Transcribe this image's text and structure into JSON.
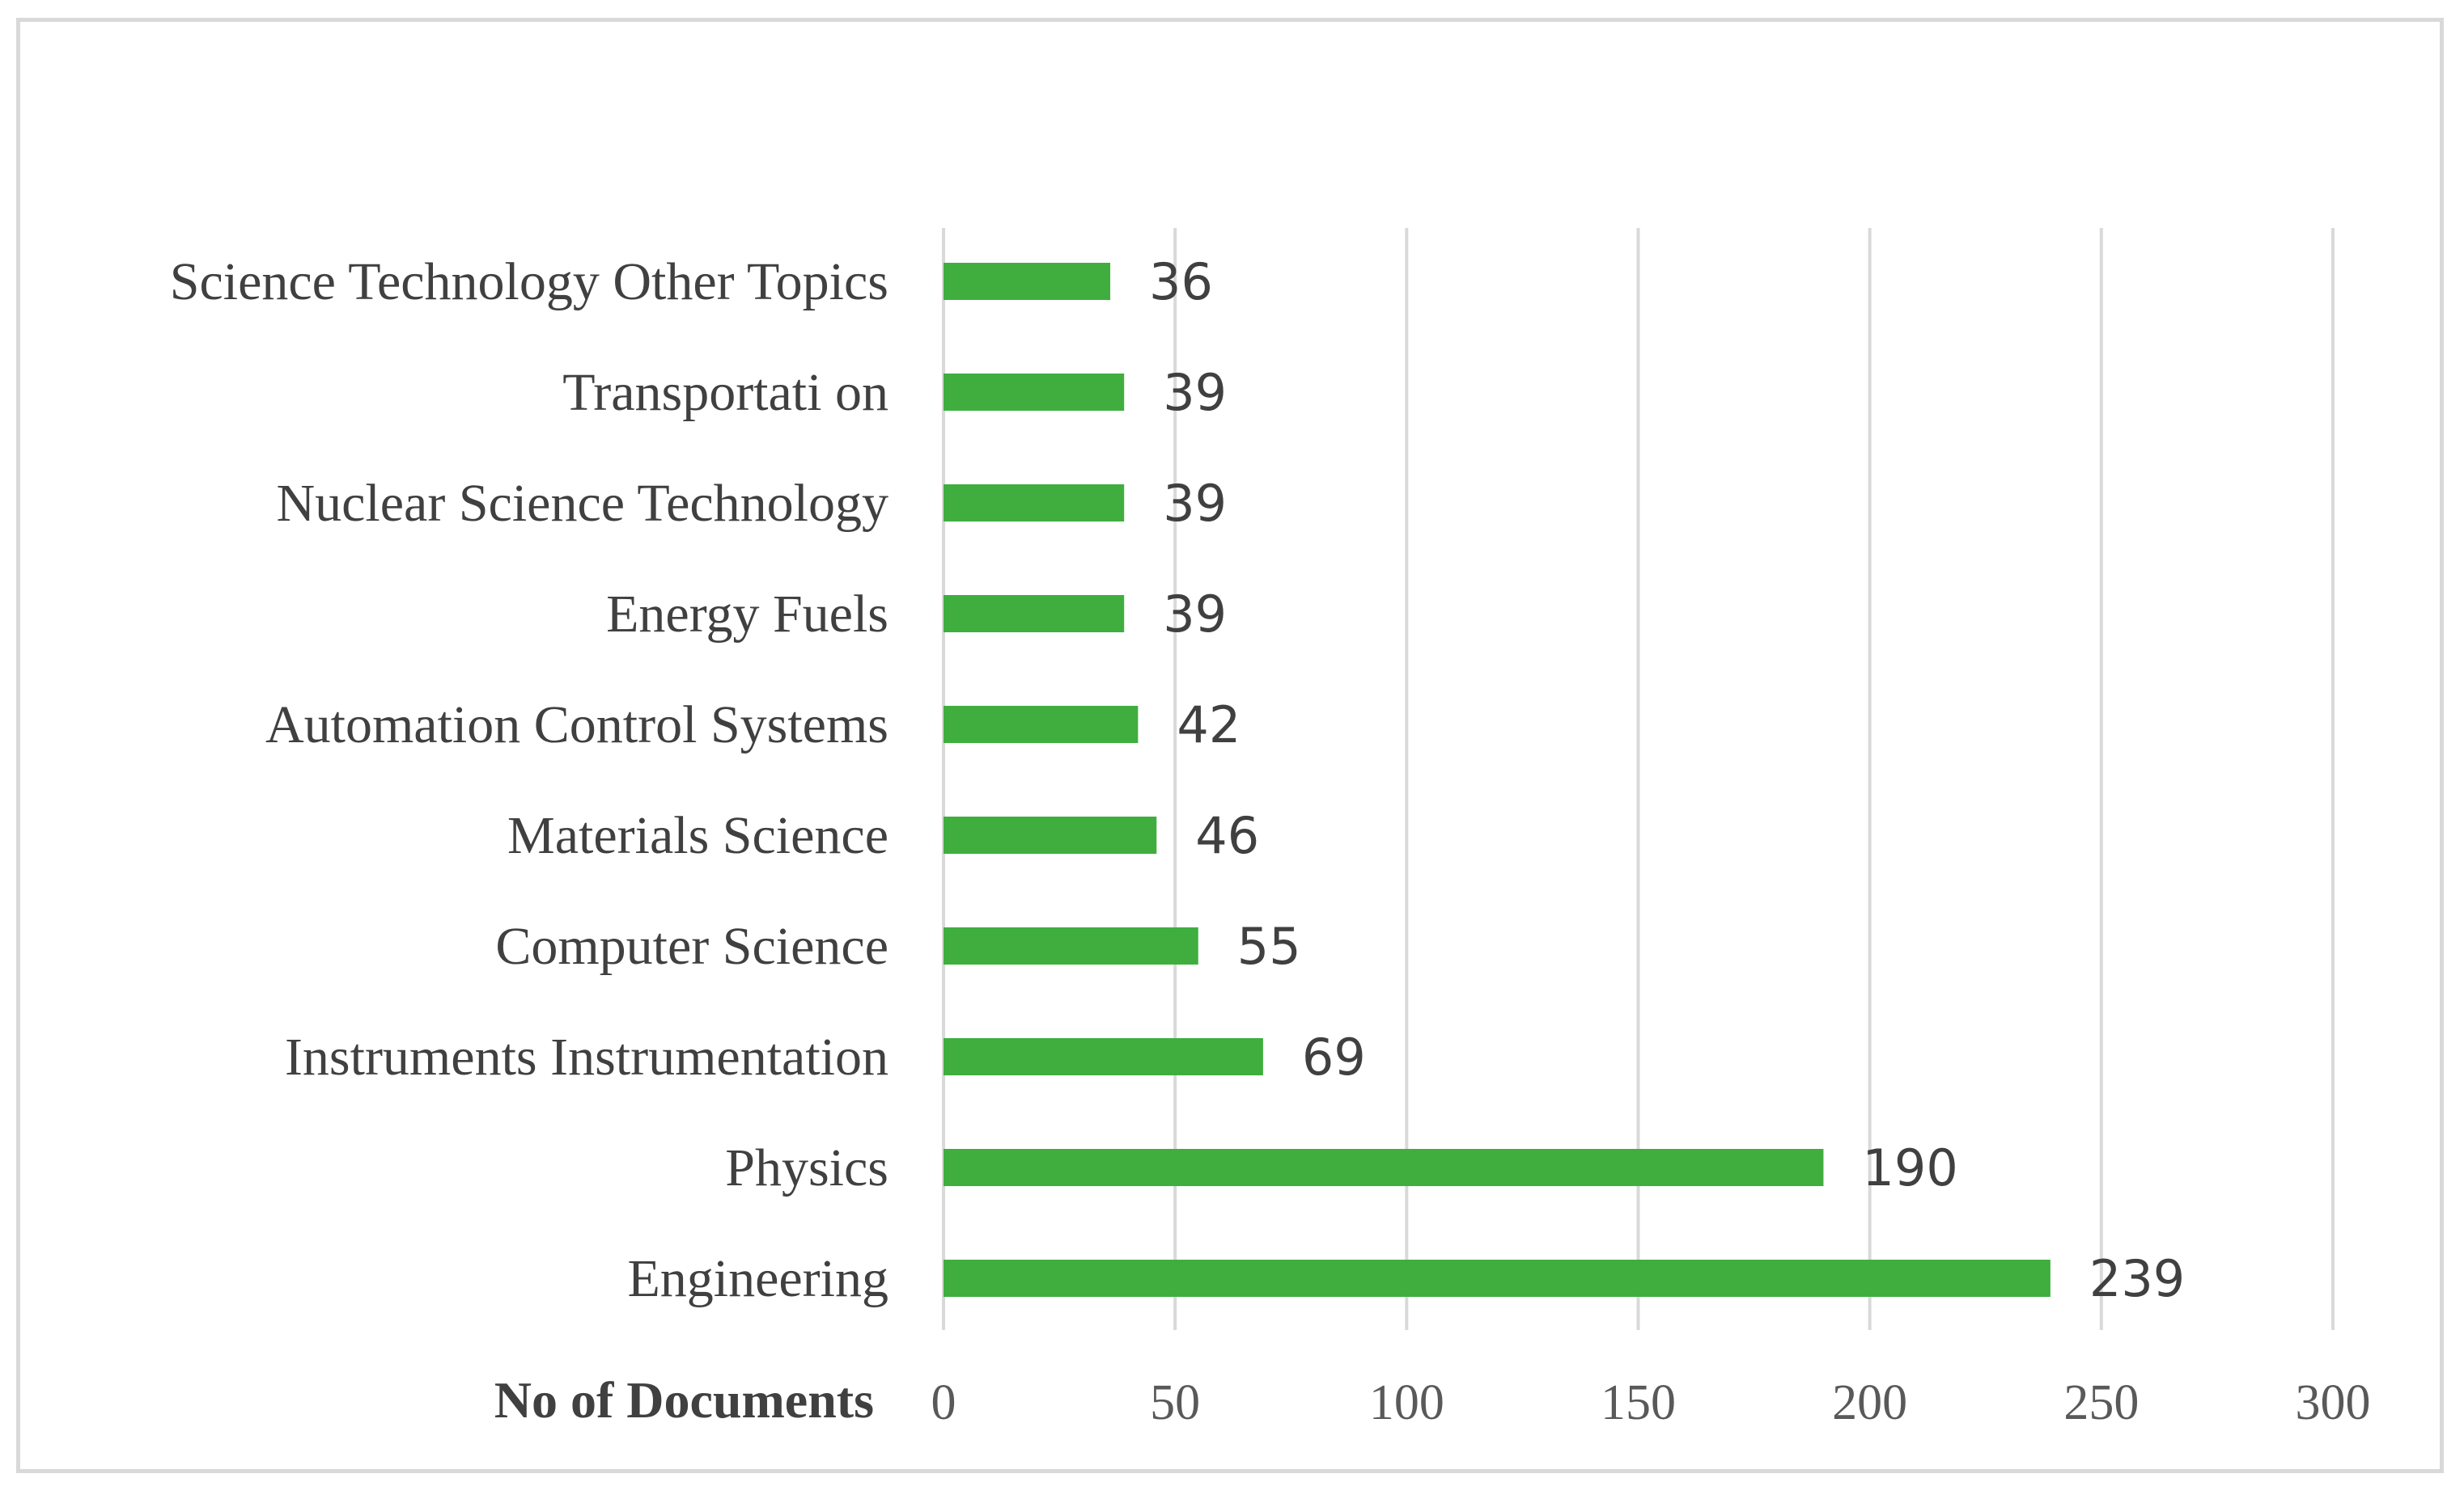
{
  "chart_data": {
    "type": "bar",
    "orientation": "horizontal",
    "categories": [
      "Science Technology Other Topics",
      "Transportati on",
      "Nuclear Science Technology",
      "Energy Fuels",
      "Automation Control Systems",
      "Materials Science",
      "Computer Science",
      "Instruments Instrumentation",
      "Physics",
      "Engineering"
    ],
    "values": [
      36,
      39,
      39,
      39,
      42,
      46,
      55,
      69,
      190,
      239
    ],
    "title": "",
    "xlabel": "No of Documents",
    "ylabel": "",
    "xlim": [
      0,
      300
    ],
    "xticks": [
      0,
      50,
      100,
      150,
      200,
      250,
      300
    ],
    "grid": "vertical",
    "legend": "none",
    "bar_color": "#3fae3f",
    "grid_color": "#d9d9d9",
    "data_labels": true
  }
}
